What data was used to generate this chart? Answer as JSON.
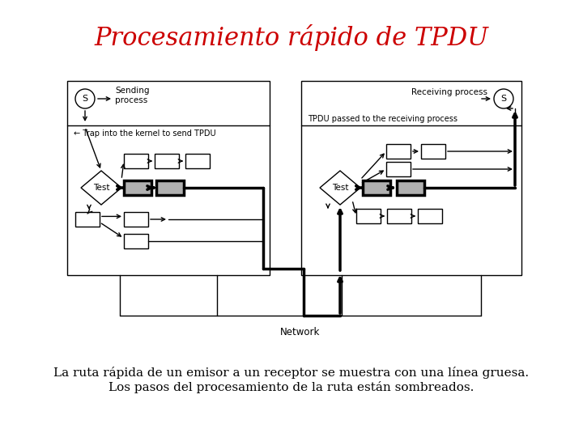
{
  "title": "Procesamiento rápido de TPDU",
  "title_color": "#cc0000",
  "title_fontsize": 22,
  "caption_line1": "La ruta rápida de un emisor a un receptor se muestra con una línea gruesa.",
  "caption_line2": "Los pasos del procesamiento de la ruta están sombreados.",
  "caption_fontsize": 11,
  "bg_color": "#ffffff",
  "gray_color": "#b0b0b0",
  "thick_lw": 2.5,
  "thin_lw": 1.0,
  "network_label": "Network",
  "left_sending": "Sending\nprocess",
  "left_trap": "← Trap into the kernel to send TPDU",
  "left_test": "Test",
  "right_receiving": "Receiving process",
  "right_tpdu": "TPDU passed to the receiving process",
  "right_test": "Test"
}
